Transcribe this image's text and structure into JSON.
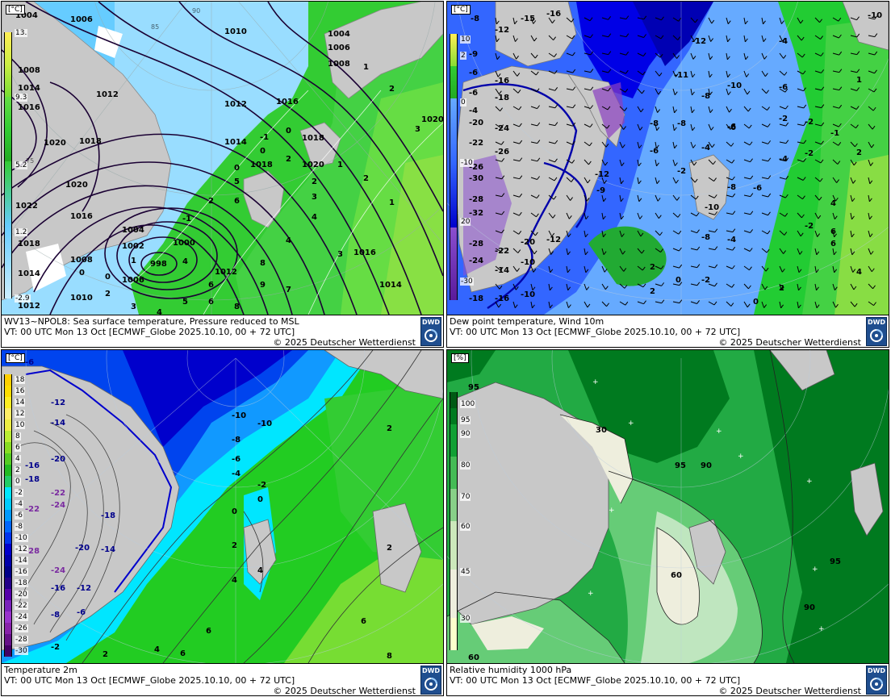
{
  "colors": {
    "land": "#c8c8c8",
    "sst_cold": "#66ccff",
    "sst_mid": "#99ddff",
    "sst_warm": "#33cc33",
    "sst_warmer": "#66dd44",
    "dew_deep": "#0000e6",
    "dew_mid": "#3366ff",
    "dew_light": "#66aaff",
    "dew_green": "#22cc33",
    "t2m_deep": "#0000cc",
    "t2m_cyan": "#00e6ff",
    "t2m_green": "#22cc22",
    "t2m_light": "#77dd33",
    "rh_dark": "#007a1f",
    "rh_mid": "#22aa44",
    "rh_light": "#66cc77",
    "rh_pale": "#eeeedd"
  },
  "panels": [
    {
      "id": "sst",
      "title": "WV13~NPOL8: Sea surface temperature,  Pressure reduced to MSL",
      "vt": "VT: 00 UTC Mon  13 Oct [ECMWF_Globe 2025.10.10, 00 + 72 UTC]",
      "copyright": "© 2025 Deutscher Wetterdienst",
      "unit": "[°C]",
      "legend": [
        "13.",
        "9.3",
        "5.2",
        "1.2",
        "-2.9"
      ],
      "labels": [
        "1004",
        "1006",
        "1010",
        "1004",
        "1006",
        "1008",
        "1008",
        "1014",
        "1012",
        "1012",
        "1016",
        "1020",
        "1018",
        "1016",
        "1018",
        "1020",
        "1020",
        "1022",
        "1016",
        "1018",
        "1014",
        "1012",
        "1004",
        "1002",
        "1000",
        "998",
        "1006",
        "1010",
        "1012",
        "1016",
        "1014",
        "1014",
        "1008",
        "1020",
        "1018",
        "1",
        "2",
        "3",
        "0",
        "-1",
        "0",
        "0",
        "2",
        "2",
        "3",
        "4",
        "4",
        "5",
        "6",
        "6",
        "8",
        "9",
        "7",
        "8",
        "6",
        "4",
        "5",
        "2",
        "3",
        "1",
        "0",
        "0",
        "2",
        "3",
        "1",
        "-1",
        "4",
        "2",
        "1"
      ]
    },
    {
      "id": "dew",
      "title": "Dew point temperature, Wind 10m",
      "vt": "VT: 00 UTC Mon  13 Oct [ECMWF_Globe 2025.10.10,  00 + 72 UTC]",
      "copyright": "© 2025 Deutscher Wetterdienst",
      "unit": "[°C]",
      "legend": [
        "10",
        "2",
        "0",
        "-10",
        "20",
        "-30"
      ],
      "labels": [
        "-8",
        "-15",
        "-16",
        "-12",
        "-9",
        "-6",
        "-6",
        "-4",
        "-16",
        "-18",
        "-20",
        "-22",
        "-24",
        "-26",
        "-26",
        "-28",
        "-30",
        "-32",
        "-28",
        "-24",
        "-22",
        "-20",
        "-18",
        "-16",
        "-14",
        "-12",
        "-10",
        "-10",
        "-12",
        "-11",
        "-12",
        "-10",
        "-9",
        "-8",
        "-6",
        "-6",
        "-10",
        "-8",
        "-8",
        "-6",
        "-4",
        "-2",
        "-4",
        "-6",
        "-2",
        "-10",
        "-6",
        "-8",
        "-4",
        "-2",
        "-2",
        "-1",
        "-2",
        "0",
        "2",
        "2",
        "2",
        "4",
        "6",
        "6",
        "4",
        "2",
        "1",
        "0",
        "-2",
        "-4",
        "-8"
      ]
    },
    {
      "id": "t2m",
      "title": "Temperature 2m",
      "vt": "VT: 00 UTC Mon  13 Oct [ECMWF_Globe 2025.10.10, 00 + 72 UTC]",
      "copyright": "© 2025 Deutscher Wetterdienst",
      "unit": "[°C]",
      "legend": [
        "18",
        "16",
        "14",
        "12",
        "10",
        "8",
        "6",
        "4",
        "2",
        "0",
        "-2",
        "-4",
        "-6",
        "-8",
        "-10",
        "-12",
        "-14",
        "-16",
        "-18",
        "-20",
        "-22",
        "-24",
        "-26",
        "-28",
        "-30"
      ],
      "labels": [
        "-6",
        "-12",
        "-14",
        "-16",
        "-20",
        "-18",
        "-22",
        "-24",
        "-22",
        "-18",
        "-20",
        "-14",
        "-28",
        "-16",
        "-24",
        "-12",
        "-8",
        "-6",
        "-2",
        "-10",
        "-10",
        "-8",
        "-6",
        "-4",
        "-2",
        "0",
        "0",
        "2",
        "2",
        "4",
        "4",
        "6",
        "6",
        "6",
        "8",
        "2",
        "2",
        "4"
      ]
    },
    {
      "id": "rh",
      "title": "Relative humidity 1000 hPa",
      "vt": "VT: 00 UTC Mon  13 Oct [ECMWF_Globe 2025.10.10,  00 + 72 UTC]",
      "copyright": "© 2025 Deutscher Wetterdienst",
      "unit": "[%]",
      "legend": [
        "100",
        "95",
        "90",
        "80",
        "70",
        "60",
        "45",
        "30"
      ],
      "labels": [
        "95",
        "30",
        "95",
        "90",
        "60",
        "95",
        "90",
        "60"
      ]
    }
  ],
  "logo_text": "DWD"
}
